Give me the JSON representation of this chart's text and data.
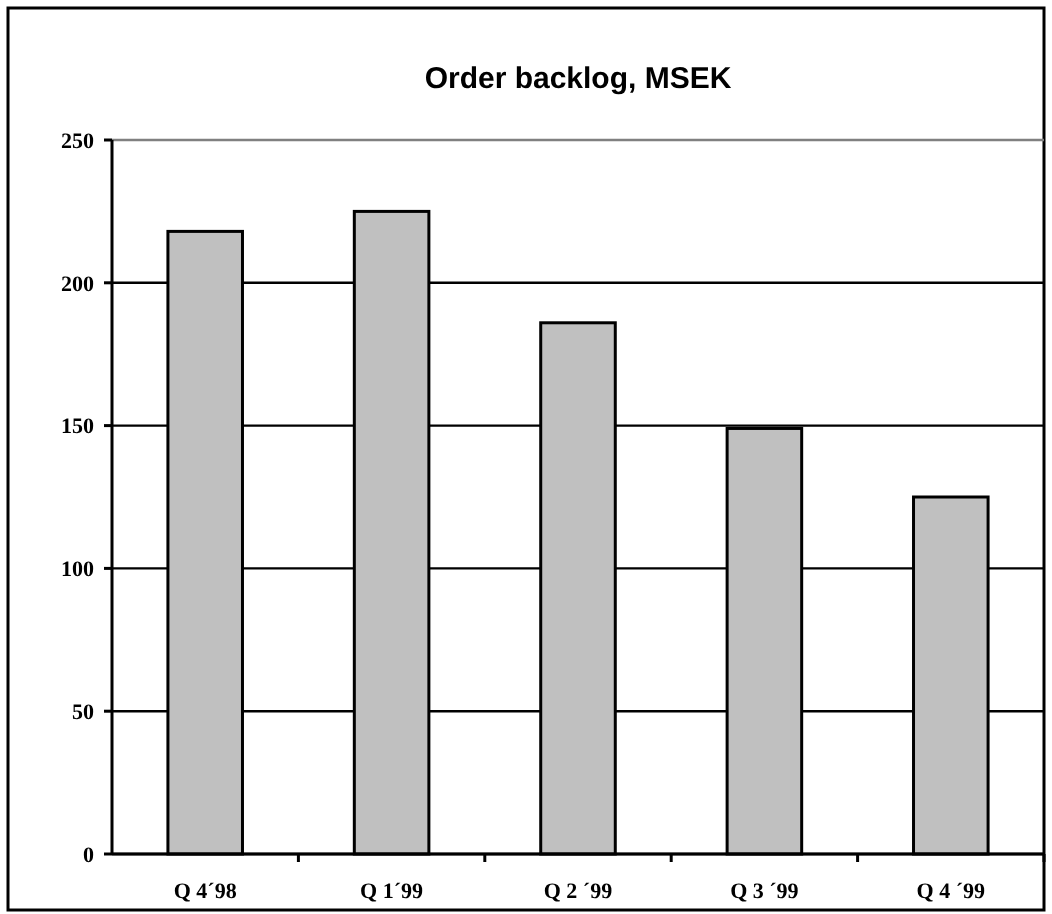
{
  "chart_data": {
    "type": "bar",
    "title": "Order backlog, MSEK",
    "categories": [
      "Q 4´98",
      "Q 1´99",
      "Q 2 ´99",
      "Q 3 ´99",
      "Q 4 ´99"
    ],
    "values": [
      218,
      225,
      186,
      149,
      125
    ],
    "color": "#c0c0c0",
    "ylim": [
      0,
      250
    ],
    "yticks": [
      0,
      50,
      100,
      150,
      200,
      250
    ],
    "grid": "y"
  }
}
